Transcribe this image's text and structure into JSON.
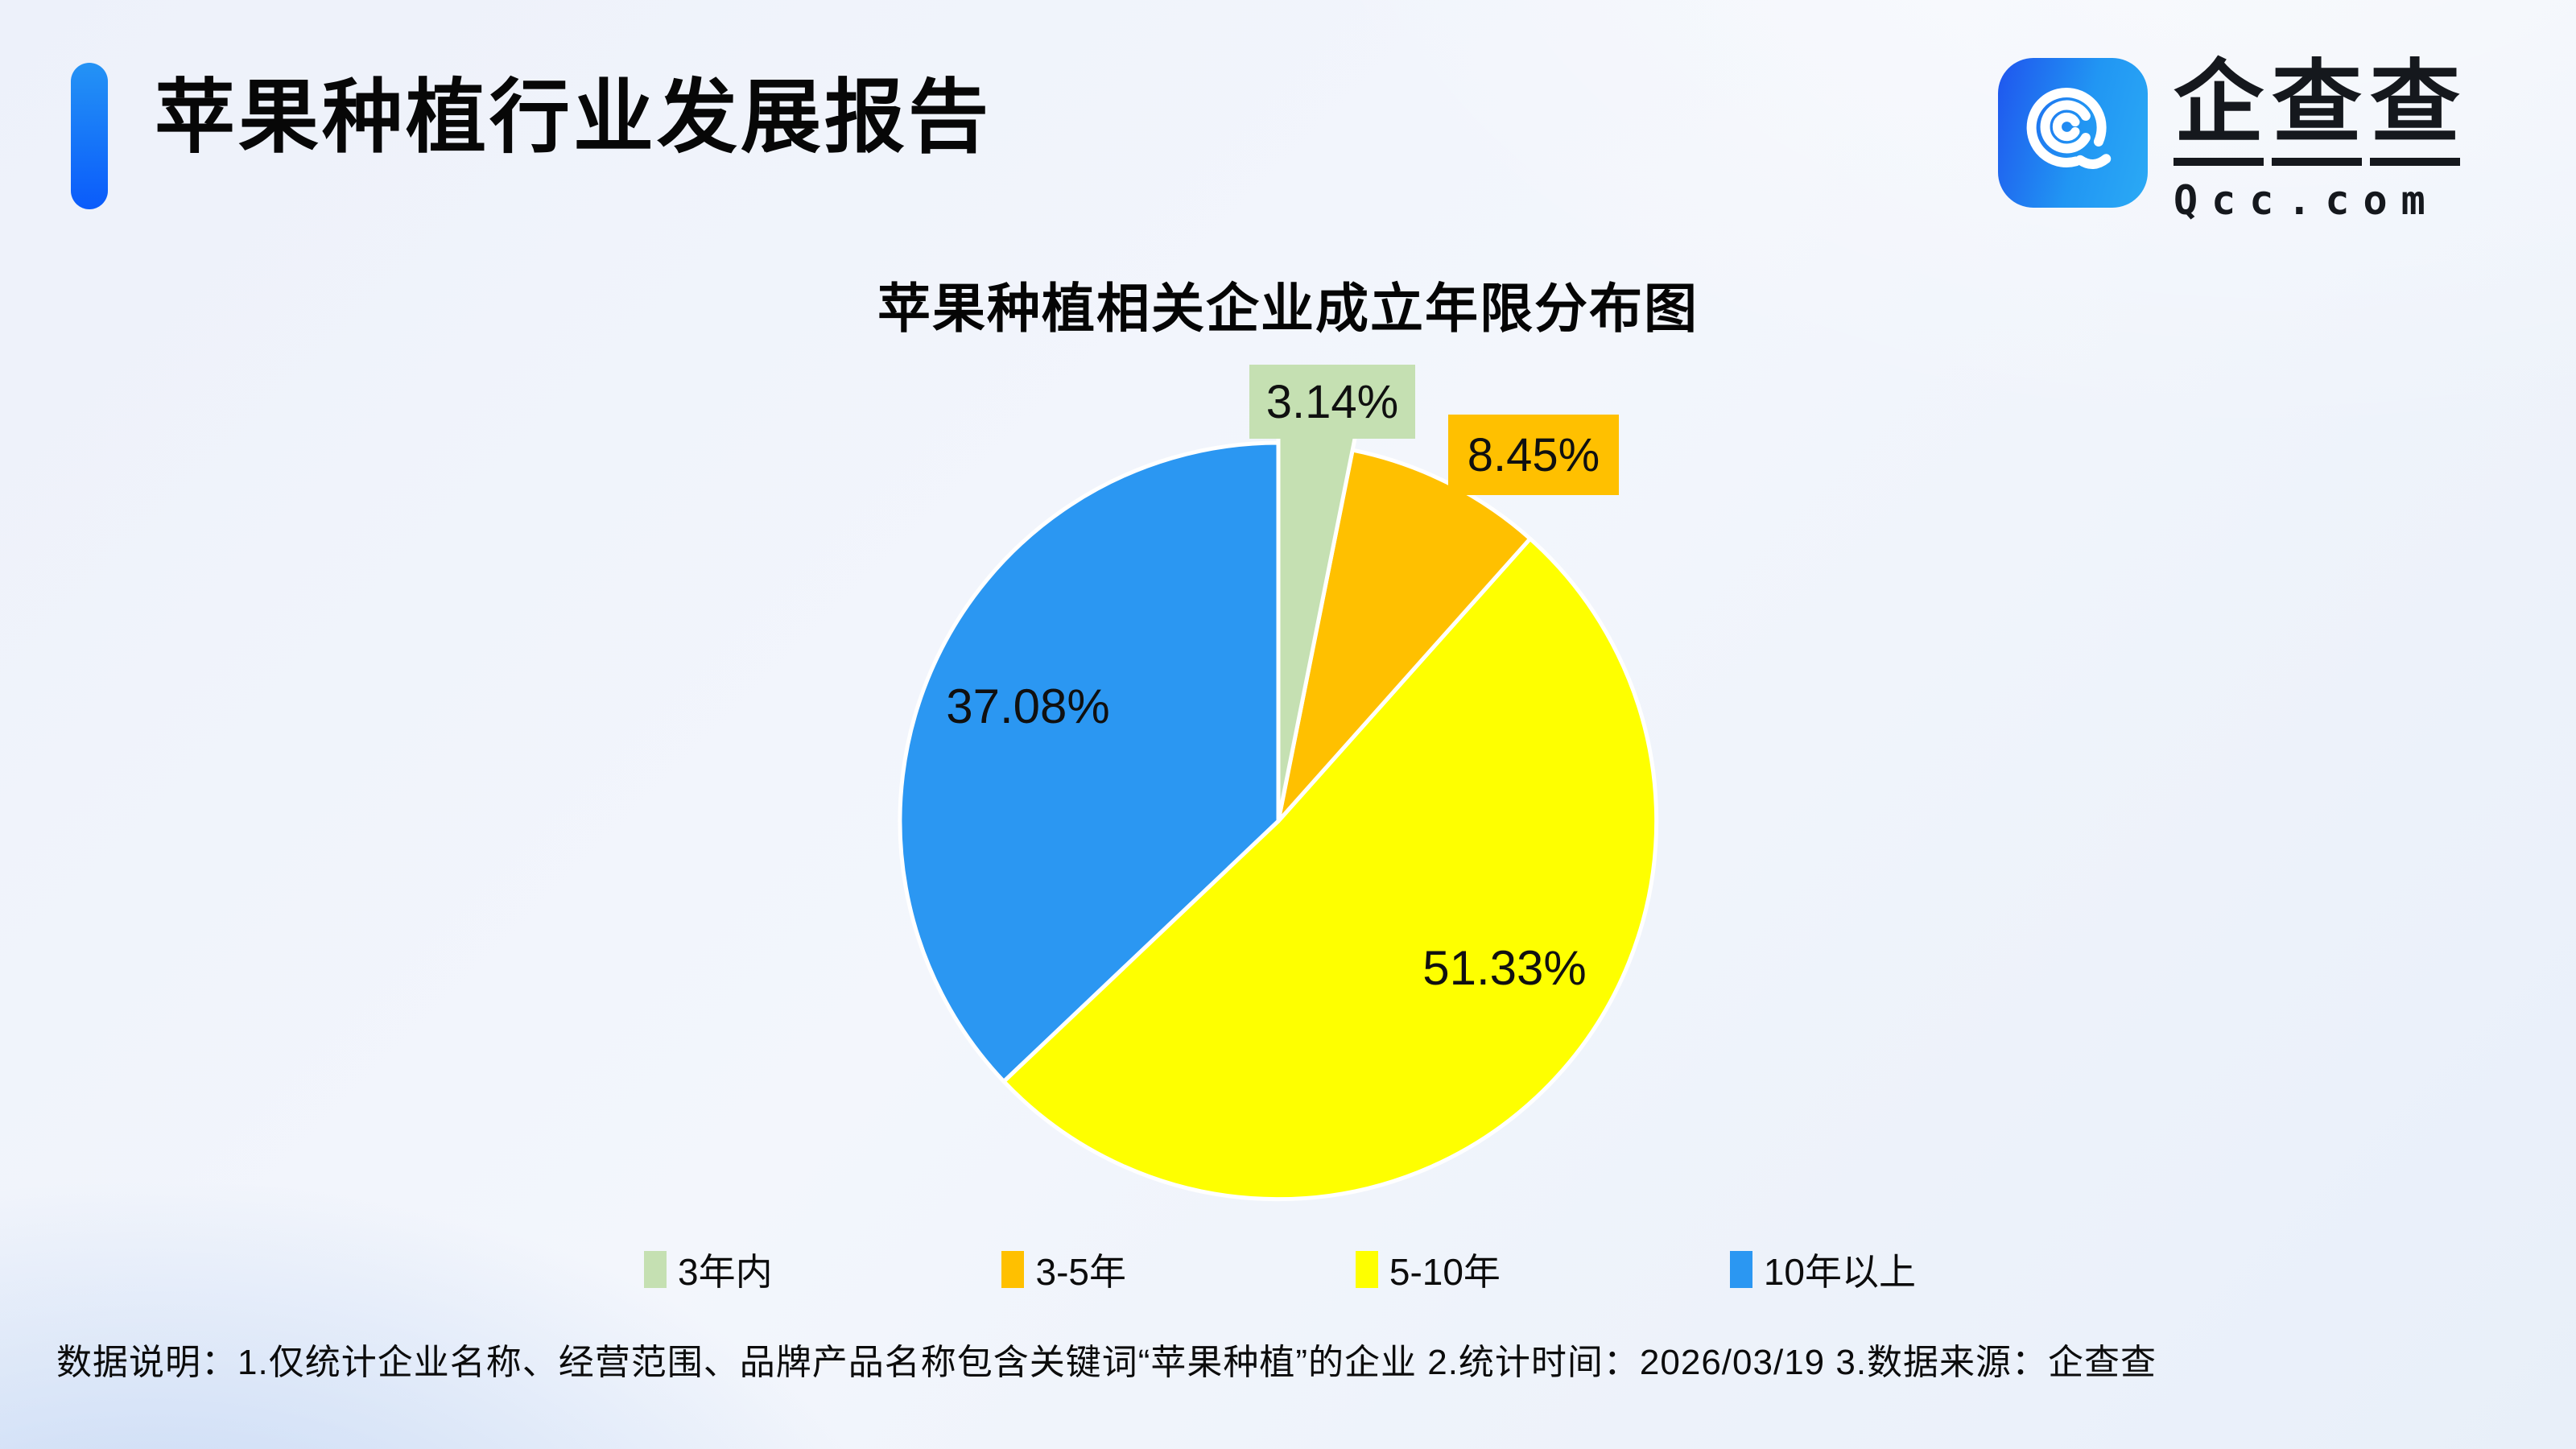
{
  "header": {
    "title": "苹果种植行业发展报告",
    "accent_gradient_top": "#2493F5",
    "accent_gradient_bottom": "#0A5BFB"
  },
  "logo": {
    "name_cn": "企查查",
    "domain": "Qcc.com",
    "icon_gradient_left": "#1F55EE",
    "icon_gradient_right": "#2BAAF5"
  },
  "chart_data": {
    "type": "pie",
    "title": "苹果种植相关企业成立年限分布图",
    "categories": [
      "3年内",
      "3-5年",
      "5-10年",
      "10年以上"
    ],
    "values": [
      3.14,
      8.45,
      51.33,
      37.08
    ],
    "labels": [
      "3.14%",
      "8.45%",
      "51.33%",
      "37.08%"
    ],
    "colors": [
      "#C5E0B2",
      "#FFC000",
      "#FEFF00",
      "#2B97F2"
    ],
    "start_angle": "12-oclock",
    "direction": "clockwise",
    "callout_slice": 0,
    "legend_position": "bottom"
  },
  "footer": {
    "text": "数据说明：1.仅统计企业名称、经营范围、品牌产品名称包含关键词“苹果种植”的企业  2.统计时间：2026/03/19   3.数据来源：企查查"
  }
}
